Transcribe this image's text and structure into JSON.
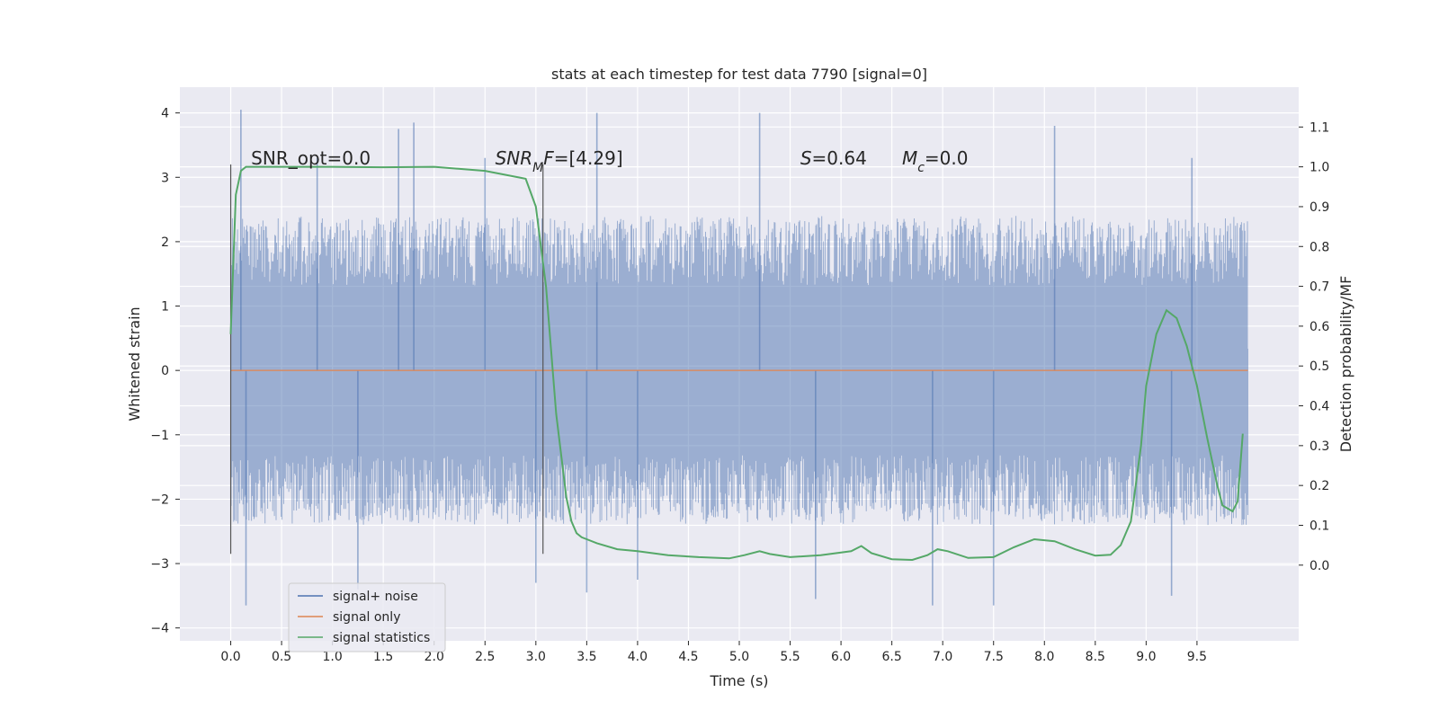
{
  "chart_data": {
    "type": "line",
    "title": "stats at each timestep for test data 7790 [signal=0]",
    "xlabel": "Time (s)",
    "ylabel_left": "Whitened strain",
    "ylabel_right": "Detection probability/MF",
    "xlim": [
      -0.5,
      10.5
    ],
    "ylim_left": [
      -4.2,
      4.4
    ],
    "ylim_right": [
      -0.19,
      1.2
    ],
    "xticks": [
      0.0,
      0.5,
      1.0,
      1.5,
      2.0,
      2.5,
      3.0,
      3.5,
      4.0,
      4.5,
      5.0,
      5.5,
      6.0,
      6.5,
      7.0,
      7.5,
      8.0,
      8.5,
      9.0,
      9.5
    ],
    "xtick_labels": [
      "0.0",
      "0.5",
      "1.0",
      "1.5",
      "2.0",
      "2.5",
      "3.0",
      "3.5",
      "4.0",
      "4.5",
      "5.0",
      "5.5",
      "6.0",
      "6.5",
      "7.0",
      "7.5",
      "8.0",
      "8.5",
      "9.0",
      "9.5"
    ],
    "yticks_left": [
      4,
      3,
      2,
      1,
      0,
      -1,
      -2,
      -3,
      -4
    ],
    "ytick_labels_left": [
      "4",
      "3",
      "2",
      "1",
      "0",
      "−1",
      "−2",
      "−3",
      "−4"
    ],
    "yticks_right": [
      1.1,
      1.0,
      0.9,
      0.8,
      0.7,
      0.6,
      0.5,
      0.4,
      0.3,
      0.2,
      0.1,
      0.0
    ],
    "ytick_labels_right": [
      "1.1",
      "1.0",
      "0.9",
      "0.8",
      "0.7",
      "0.6",
      "0.5",
      "0.4",
      "0.3",
      "0.2",
      "0.1",
      "0.0"
    ],
    "grid": true,
    "legend_position": "lower-left",
    "series": [
      {
        "name": "signal+ noise",
        "axis": "left",
        "color": "#4c72b0",
        "noise": {
          "t_start": 0.0,
          "t_end": 10.0,
          "envelope_low": -2.4,
          "envelope_high": 2.4,
          "spikes": [
            {
              "x": 0.1,
              "y": 4.05
            },
            {
              "x": 0.15,
              "y": -3.65
            },
            {
              "x": 0.85,
              "y": 3.3
            },
            {
              "x": 1.25,
              "y": -3.4
            },
            {
              "x": 1.65,
              "y": 3.75
            },
            {
              "x": 1.8,
              "y": 3.85
            },
            {
              "x": 2.5,
              "y": 3.3
            },
            {
              "x": 3.0,
              "y": -3.3
            },
            {
              "x": 3.5,
              "y": -3.45
            },
            {
              "x": 3.6,
              "y": 4.0
            },
            {
              "x": 4.0,
              "y": -3.25
            },
            {
              "x": 5.2,
              "y": 4.0
            },
            {
              "x": 5.75,
              "y": -3.55
            },
            {
              "x": 6.9,
              "y": -3.65
            },
            {
              "x": 7.5,
              "y": -3.65
            },
            {
              "x": 8.1,
              "y": 3.8
            },
            {
              "x": 9.25,
              "y": -3.5
            },
            {
              "x": 9.45,
              "y": 3.3
            }
          ]
        }
      },
      {
        "name": "signal only",
        "axis": "left",
        "color": "#dd8452",
        "x": [
          0.0,
          10.0
        ],
        "y": [
          0.0,
          0.0
        ]
      },
      {
        "name": "signal statistics",
        "axis": "right",
        "color": "#55a868",
        "x": [
          0.0,
          0.05,
          0.1,
          0.15,
          0.25,
          0.5,
          1.0,
          1.5,
          2.0,
          2.5,
          2.9,
          3.0,
          3.1,
          3.2,
          3.3,
          3.35,
          3.4,
          3.45,
          3.5,
          3.6,
          3.8,
          4.0,
          4.3,
          4.6,
          4.9,
          5.05,
          5.2,
          5.3,
          5.5,
          5.8,
          6.1,
          6.2,
          6.3,
          6.5,
          6.7,
          6.85,
          6.95,
          7.05,
          7.25,
          7.5,
          7.7,
          7.9,
          8.1,
          8.3,
          8.5,
          8.65,
          8.75,
          8.85,
          8.95,
          9.0,
          9.1,
          9.2,
          9.3,
          9.4,
          9.5,
          9.6,
          9.7,
          9.75,
          9.85,
          9.9,
          9.95
        ],
        "y": [
          0.58,
          0.93,
          0.99,
          1.0,
          1.0,
          1.0,
          1.0,
          0.999,
          1.0,
          0.99,
          0.97,
          0.9,
          0.7,
          0.38,
          0.17,
          0.11,
          0.08,
          0.07,
          0.065,
          0.055,
          0.04,
          0.035,
          0.025,
          0.02,
          0.017,
          0.025,
          0.035,
          0.028,
          0.02,
          0.025,
          0.035,
          0.048,
          0.03,
          0.015,
          0.013,
          0.025,
          0.04,
          0.035,
          0.018,
          0.02,
          0.045,
          0.065,
          0.06,
          0.04,
          0.024,
          0.026,
          0.05,
          0.11,
          0.3,
          0.45,
          0.58,
          0.64,
          0.62,
          0.55,
          0.45,
          0.32,
          0.2,
          0.15,
          0.135,
          0.16,
          0.33
        ]
      }
    ],
    "vertical_markers": [
      {
        "x": 0.0,
        "y_from": -2.85,
        "y_to": 3.2
      },
      {
        "x": 3.07,
        "y_from": -2.85,
        "y_to": 3.2
      }
    ],
    "annotations": [
      {
        "id": "snr_opt",
        "x": 0.2,
        "y": 3.2,
        "parts": [
          {
            "text": "SNR_opt=0.0"
          }
        ]
      },
      {
        "id": "snr_mf",
        "x": 2.6,
        "y": 3.2,
        "parts": [
          {
            "text": "SNR",
            "italic": true
          },
          {
            "text": "M",
            "italic": true,
            "sub": true
          },
          {
            "text": "F",
            "italic": true
          },
          {
            "text": "=[4.29]"
          }
        ]
      },
      {
        "id": "s_stat",
        "x": 5.6,
        "y": 3.2,
        "parts": [
          {
            "text": "S",
            "italic": true
          },
          {
            "text": "=0.64"
          }
        ]
      },
      {
        "id": "mc",
        "x": 6.6,
        "y": 3.2,
        "parts": [
          {
            "text": "M",
            "italic": true
          },
          {
            "text": "c",
            "italic": true,
            "sub": true
          },
          {
            "text": "=0.0"
          }
        ]
      }
    ]
  }
}
